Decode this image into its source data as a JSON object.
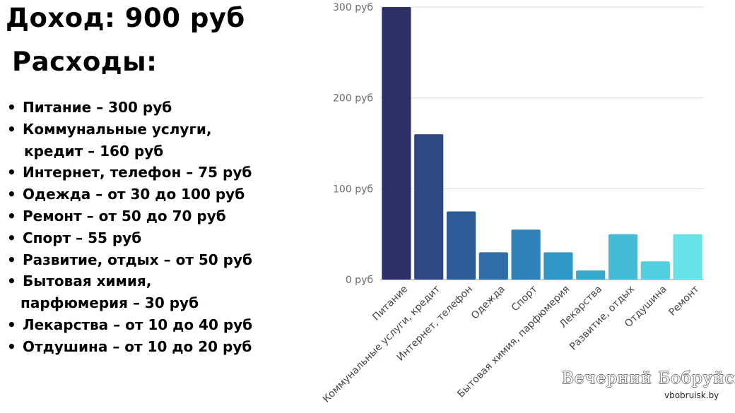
{
  "header": {
    "income": "Доход: 900 руб",
    "expenses_title": "Расходы:"
  },
  "expenses_list": [
    {
      "line1": "Питание – 300 руб"
    },
    {
      "line1": "Коммунальные услуги,",
      "line2": "кредит – 160 руб"
    },
    {
      "line1": "Интернет, телефон – 75 руб"
    },
    {
      "line1": "Одежда – от 30 до 100 руб"
    },
    {
      "line1": "Ремонт – от 50 до 70 руб"
    },
    {
      "line1": "Спорт – 55 руб"
    },
    {
      "line1": "Развитие, отдых – от 50 руб"
    },
    {
      "line1": "Бытовая химия,",
      "line2": "парфюмерия – 30 руб"
    },
    {
      "line1": "Лекарства – от 10 до 40 руб"
    },
    {
      "line1": "Отдушина – от 10 до 20 руб"
    }
  ],
  "chart_data": {
    "type": "bar",
    "categories": [
      "Питание",
      "Коммунальные услуги, кредит",
      "Интернет, телефон",
      "Одежда",
      "Спорт",
      "Бытовая химия, парфюмерия",
      "Лекарства",
      "Развитие, отдых",
      "Отдушина",
      "Ремонт"
    ],
    "values": [
      300,
      160,
      75,
      30,
      55,
      30,
      10,
      50,
      20,
      50
    ],
    "ylim": [
      0,
      300
    ],
    "yticks": [
      0,
      100,
      200,
      300
    ],
    "ytick_labels": [
      "0 руб",
      "100 руб",
      "200 руб",
      "300 руб"
    ],
    "grid": true,
    "colors": [
      "#2e3065",
      "#2f4783",
      "#2d5b96",
      "#2f6ea8",
      "#2f82b9",
      "#3197c6",
      "#38a9cc",
      "#44bcd6",
      "#52cfe0",
      "#66e2e8"
    ]
  },
  "watermark": {
    "name": "Вечерний Бобруйск",
    "url": "vbobruisk.by"
  }
}
